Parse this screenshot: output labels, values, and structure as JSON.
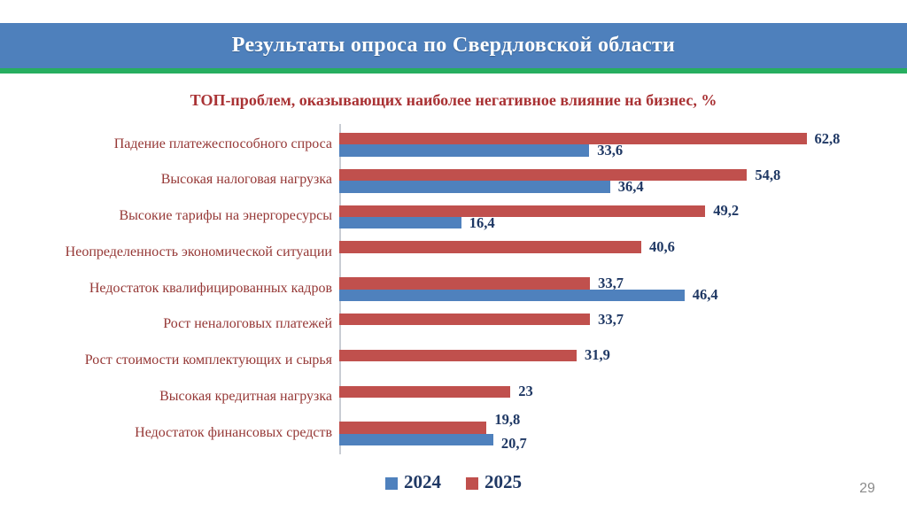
{
  "header": {
    "title": "Результаты опроса по Свердловской области"
  },
  "page_number": "29",
  "colors": {
    "banner_blue": "#4E80BC",
    "green_accent": "#27AE60",
    "bar_2024": "#4F81BD",
    "bar_2025": "#C0504D",
    "category_text": "#953735",
    "title_text": "#A93234",
    "value_text": "#1F3864",
    "axis_line": "#C9CDD4",
    "page_number_gray": "#8C8C8C"
  },
  "chart_data": {
    "type": "bar",
    "orientation": "horizontal",
    "title": "ТОП-проблем, оказывающих наиболее негативное влияние на бизнес, %",
    "categories": [
      "Падение платежеспособного спроса",
      "Высокая налоговая нагрузка",
      "Высокие тарифы на энергоресурсы",
      "Неопределенность экономической ситуации",
      "Недостаток квалифицированных кадров",
      "Рост неналоговых платежей",
      "Рост стоимости комплектующих и сырья",
      "Высокая кредитная нагрузка",
      "Недостаток финансовых средств"
    ],
    "series": [
      {
        "name": "2024",
        "values": [
          33.6,
          36.4,
          16.4,
          null,
          46.4,
          null,
          null,
          null,
          20.7
        ]
      },
      {
        "name": "2025",
        "values": [
          62.8,
          54.8,
          49.2,
          40.6,
          33.7,
          33.7,
          31.9,
          23,
          19.8
        ]
      }
    ],
    "xlim": [
      0,
      70
    ],
    "grid": false,
    "value_labels": true,
    "decimal_separator": ",",
    "legend_position": "bottom"
  }
}
